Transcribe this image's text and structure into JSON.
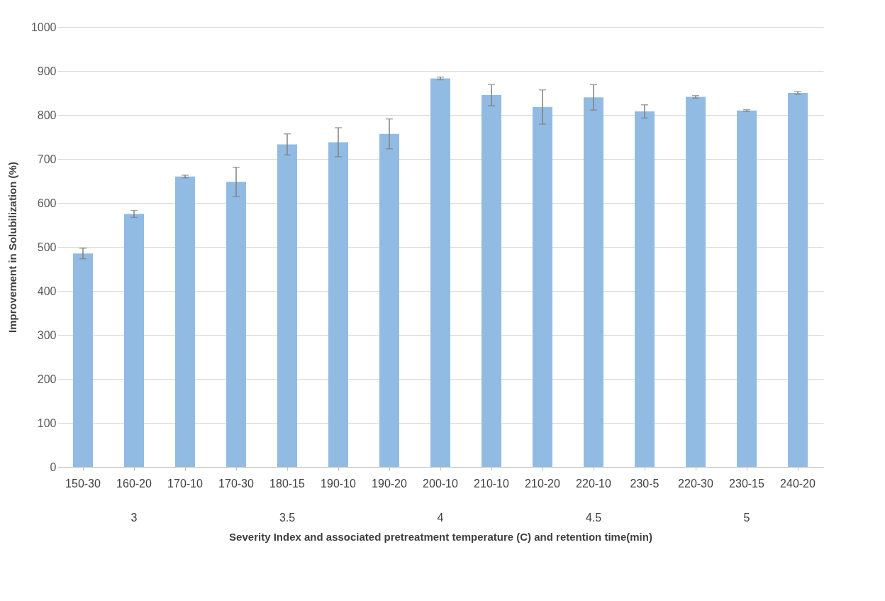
{
  "chart_data": {
    "type": "bar",
    "xlabel": "Severity Index and associated pretreatment temperature (C) and retention time(min)",
    "ylabel": "Improvement in Solubilization (%)",
    "categories": [
      "150-30",
      "160-20",
      "170-10",
      "170-30",
      "180-15",
      "190-10",
      "190-20",
      "200-10",
      "210-10",
      "210-20",
      "220-10",
      "230-5",
      "220-30",
      "230-15",
      "240-20"
    ],
    "values": [
      485,
      575,
      660,
      648,
      733,
      738,
      757,
      883,
      845,
      818,
      840,
      808,
      841,
      810,
      850
    ],
    "errors": [
      12,
      8,
      3,
      33,
      24,
      33,
      34,
      3,
      24,
      39,
      29,
      15,
      3,
      2,
      3
    ],
    "color": "#92bbe3",
    "ylim": [
      0,
      1000
    ],
    "yticks": [
      0,
      100,
      200,
      300,
      400,
      500,
      600,
      700,
      800,
      900,
      1000
    ],
    "grid": "y",
    "annotations": [
      "3",
      "3.5",
      "4",
      "4.5",
      "5"
    ]
  }
}
